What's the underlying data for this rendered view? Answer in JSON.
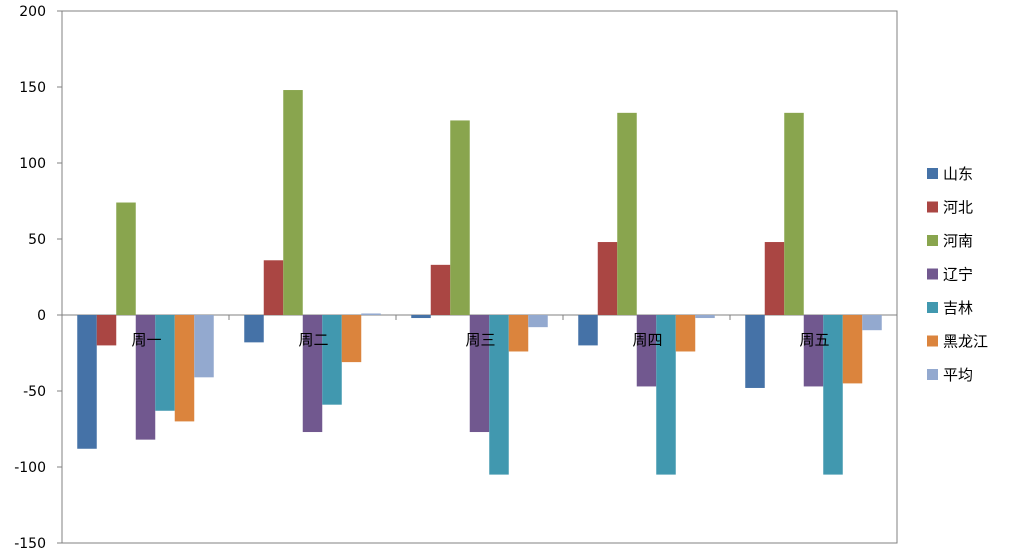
{
  "chart_data": {
    "type": "bar",
    "title": "",
    "xlabel": "",
    "ylabel": "",
    "categories": [
      "周一",
      "周二",
      "周三",
      "周四",
      "周五"
    ],
    "ylim": [
      -150,
      200
    ],
    "yticks": [
      200,
      150,
      100,
      50,
      0,
      -50,
      -100,
      -150
    ],
    "grid": false,
    "legend_position": "right",
    "series": [
      {
        "name": "山东",
        "color": "#4572A7",
        "values": [
          -88,
          -18,
          -2,
          -20,
          -48
        ]
      },
      {
        "name": "河北",
        "color": "#AA4643",
        "values": [
          -20,
          36,
          33,
          48,
          48
        ]
      },
      {
        "name": "河南",
        "color": "#89A54E",
        "values": [
          74,
          148,
          128,
          133,
          133
        ]
      },
      {
        "name": "辽宁",
        "color": "#71588F",
        "values": [
          -82,
          -77,
          -77,
          -47,
          -47
        ]
      },
      {
        "name": "吉林",
        "color": "#4198AF",
        "values": [
          -63,
          -59,
          -105,
          -105,
          -105
        ]
      },
      {
        "name": "黑龙江",
        "color": "#DB843D",
        "values": [
          -70,
          -31,
          -24,
          -24,
          -45
        ]
      },
      {
        "name": "平均",
        "color": "#93A9CF",
        "values": [
          -41,
          1,
          -8,
          -2,
          -10
        ]
      }
    ]
  }
}
